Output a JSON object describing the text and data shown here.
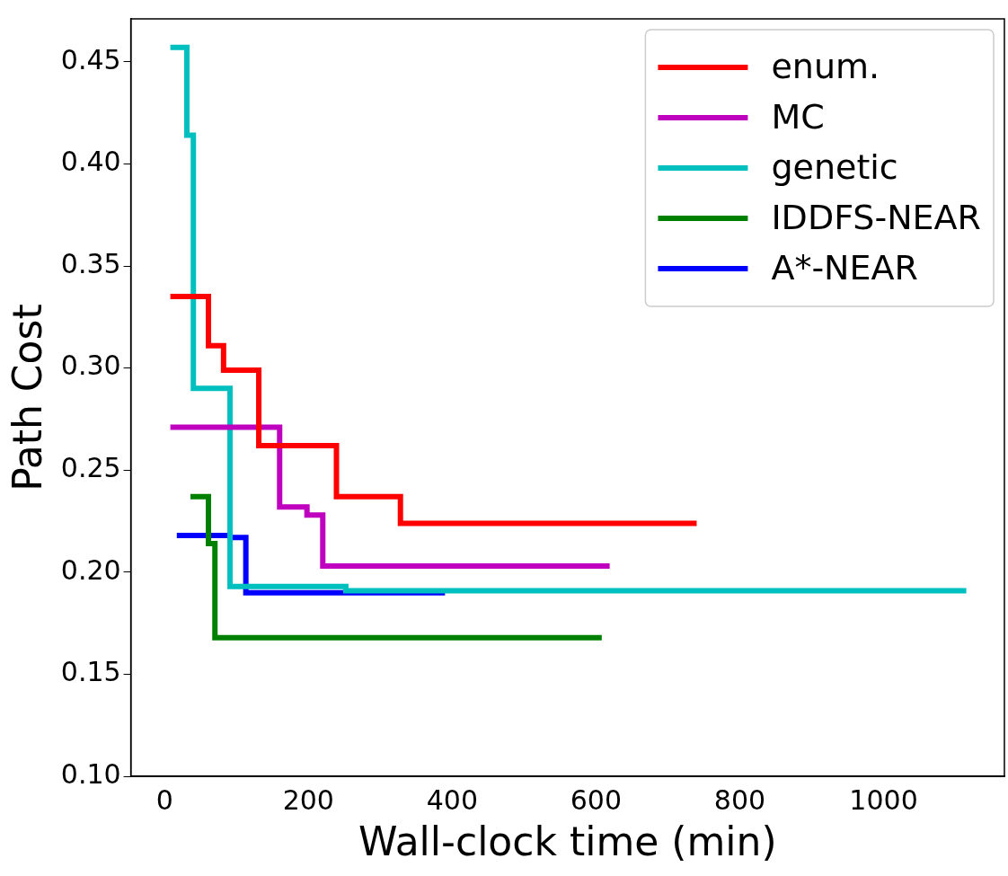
{
  "chart_data": {
    "type": "step",
    "xlabel": "Wall-clock time (min)",
    "ylabel": "Path Cost",
    "xlim": [
      -47,
      1168
    ],
    "xticks": [
      0,
      200,
      400,
      600,
      800,
      1000
    ],
    "ylim": [
      0.1,
      0.471
    ],
    "yticks": [
      {
        "value": 0.1,
        "label": "0.10"
      },
      {
        "value": 0.15,
        "label": "0.15"
      },
      {
        "value": 0.2,
        "label": "0.20"
      },
      {
        "value": 0.25,
        "label": "0.25"
      },
      {
        "value": 0.3,
        "label": "0.30"
      },
      {
        "value": 0.35,
        "label": "0.35"
      },
      {
        "value": 0.4,
        "label": "0.40"
      },
      {
        "value": 0.45,
        "label": "0.45"
      }
    ],
    "grid": false,
    "legend": "top right",
    "line_style": "solid",
    "marker": "none",
    "series": [
      {
        "name": "enum.",
        "color": "#ff0000",
        "x": [
          8,
          61,
          82,
          131,
          239,
          328,
          740
        ],
        "values": [
          0.335,
          0.311,
          0.299,
          0.262,
          0.237,
          0.224,
          0.224
        ]
      },
      {
        "name": "MC",
        "color": "#bf00bf",
        "x": [
          8,
          160,
          198,
          220,
          619
        ],
        "values": [
          0.271,
          0.232,
          0.228,
          0.203,
          0.203
        ]
      },
      {
        "name": "genetic",
        "color": "#00bfbf",
        "x": [
          8,
          31,
          40,
          91,
          252,
          1115
        ],
        "values": [
          0.457,
          0.414,
          0.29,
          0.193,
          0.191,
          0.191
        ]
      },
      {
        "name": "IDDFS-NEAR",
        "color": "#008000",
        "x": [
          36,
          61,
          70,
          608
        ],
        "values": [
          0.237,
          0.214,
          0.168,
          0.168
        ]
      },
      {
        "name": "A*-NEAR",
        "color": "#0000ff",
        "x": [
          17,
          91,
          113,
          390
        ],
        "values": [
          0.218,
          0.217,
          0.19,
          0.19
        ]
      }
    ]
  }
}
